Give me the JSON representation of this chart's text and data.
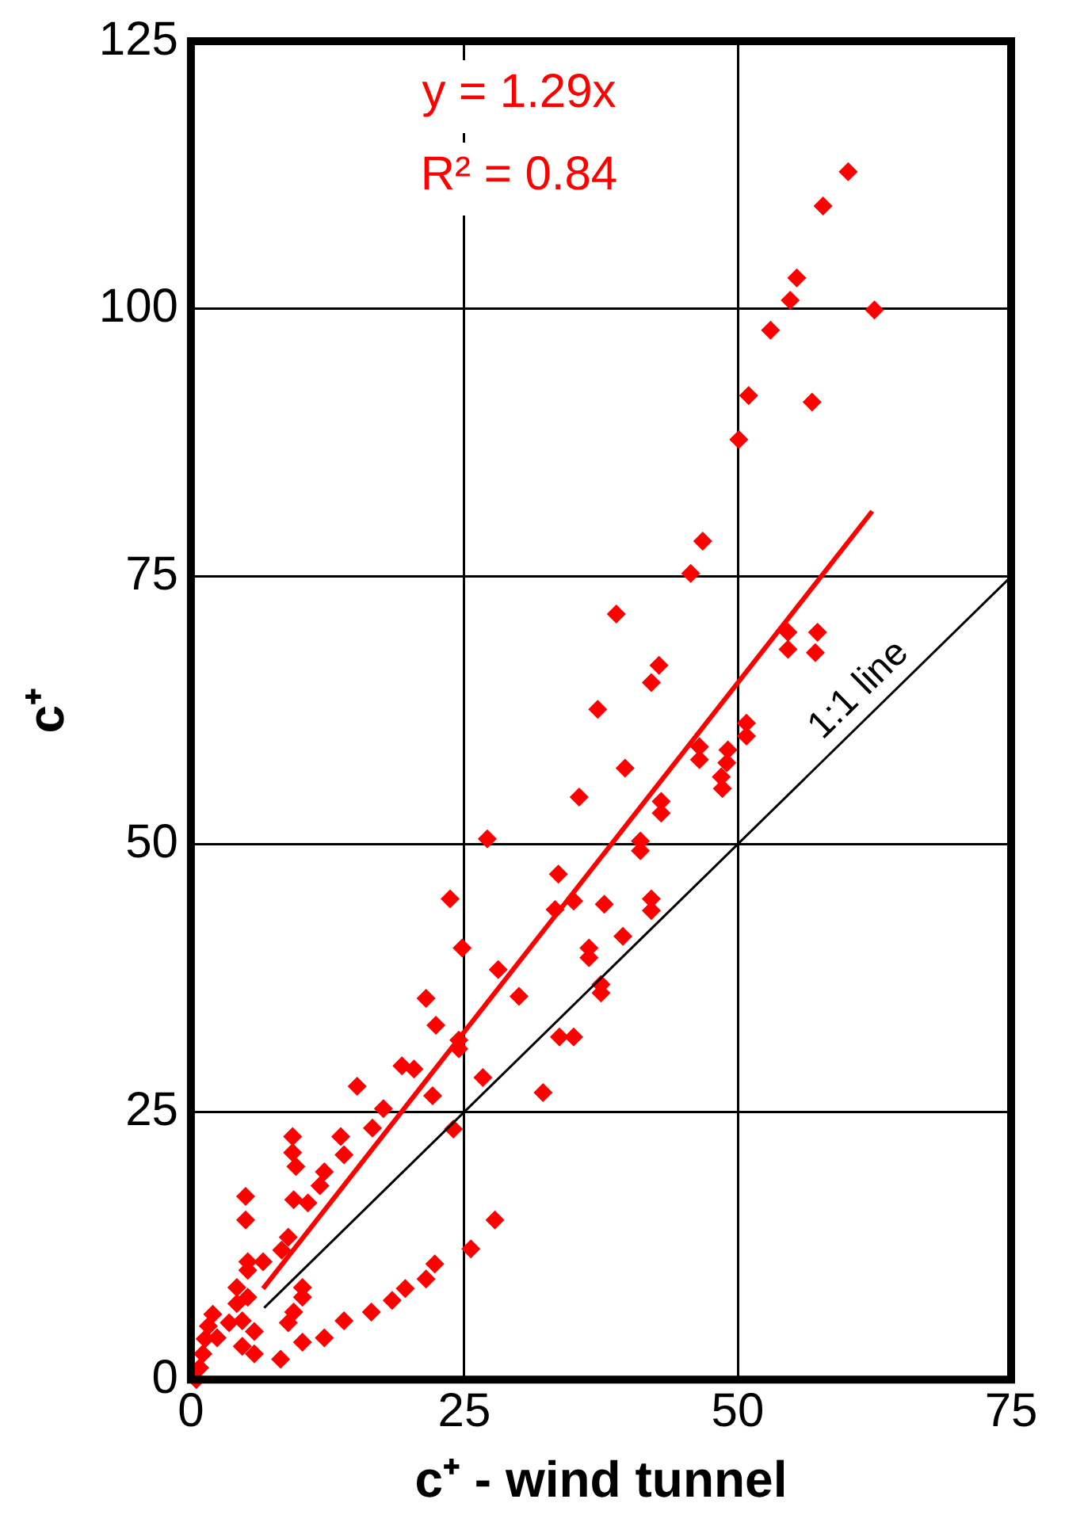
{
  "chart_data": {
    "type": "scatter",
    "xlabel": "c⁺ - wind tunnel",
    "ylabel": "c⁺",
    "xlim": [
      0,
      75
    ],
    "xticks": [
      0,
      25,
      50,
      75
    ],
    "ylim": [
      0,
      125
    ],
    "yticks": [
      0,
      25,
      50,
      75,
      100,
      125
    ],
    "grid": true,
    "legend": false,
    "annotations": [
      "y = 1.29x",
      "R² = 0.84"
    ],
    "series": [
      {
        "type": "scatter",
        "color": "#ff0000",
        "marker": "diamond",
        "x": [
          60.1,
          57.8,
          55.4,
          54.8,
          62.5,
          53.0,
          51.0,
          56.8,
          50.1,
          46.8,
          45.7,
          54.6,
          57.3,
          38.9,
          54.6,
          57.1,
          42.8,
          42.1,
          37.2,
          50.8,
          50.8,
          46.5,
          46.5,
          49.1,
          49.0,
          48.5,
          48.6,
          39.7,
          35.5,
          43.0,
          43.0,
          41.1,
          41.1,
          27.1,
          33.6,
          33.3,
          35.0,
          37.8,
          42.1,
          42.1,
          39.5,
          36.4,
          36.4,
          28.1,
          30.0,
          37.5,
          37.5,
          33.7,
          35.0,
          32.2,
          26.7,
          23.7,
          24.8,
          21.5,
          22.4,
          24.5,
          24.5,
          19.3,
          20.4,
          15.2,
          22.1,
          17.6,
          16.6,
          24.0,
          9.3,
          9.3,
          9.6,
          13.7,
          14.0,
          12.2,
          11.8,
          5.0,
          5.0,
          9.4,
          10.7,
          8.9,
          8.3,
          27.8,
          25.6,
          22.3,
          21.5,
          19.6,
          18.4,
          16.5,
          14.0,
          12.2,
          10.2,
          8.2,
          10.2,
          10.2,
          9.4,
          8.9,
          5.2,
          5.2,
          6.6,
          4.2,
          4.2,
          5.2,
          4.7,
          5.8,
          4.7,
          5.8,
          2.0,
          1.6,
          1.3,
          1.1,
          0.8,
          0.5,
          2.4,
          3.5
        ],
        "values": [
          112.8,
          109.6,
          102.9,
          100.8,
          99.9,
          98.0,
          91.9,
          91.3,
          87.8,
          78.3,
          75.3,
          69.8,
          69.8,
          71.5,
          68.2,
          67.9,
          66.7,
          65.1,
          62.6,
          61.3,
          60.1,
          59.1,
          57.9,
          58.8,
          57.6,
          56.3,
          55.2,
          57.1,
          54.4,
          54.0,
          52.9,
          50.3,
          49.4,
          50.5,
          47.2,
          43.9,
          44.7,
          44.4,
          44.9,
          43.8,
          41.4,
          40.3,
          39.4,
          38.3,
          35.8,
          36.9,
          36.1,
          32.0,
          32.0,
          26.8,
          28.2,
          44.9,
          40.3,
          35.6,
          33.1,
          31.7,
          30.9,
          29.3,
          29.0,
          27.4,
          26.5,
          25.3,
          23.5,
          23.4,
          22.7,
          21.2,
          19.9,
          22.7,
          21.0,
          19.4,
          18.1,
          17.1,
          14.9,
          16.8,
          16.5,
          13.3,
          12.1,
          14.9,
          12.2,
          10.8,
          9.4,
          8.5,
          7.4,
          6.3,
          5.5,
          3.9,
          3.5,
          1.9,
          8.6,
          7.7,
          6.3,
          5.3,
          11.0,
          10.2,
          11.0,
          8.6,
          7.1,
          7.7,
          5.5,
          4.5,
          3.1,
          2.4,
          6.1,
          5.0,
          3.8,
          2.4,
          1.1,
          0.0,
          3.9,
          5.3
        ]
      },
      {
        "type": "line",
        "color": "#ff0000",
        "x": [
          6.6,
          62.3
        ],
        "values": [
          8.5,
          81.1
        ]
      },
      {
        "type": "line",
        "name": "1:1 line",
        "color": "#000000",
        "x": [
          6.7,
          75
        ],
        "values": [
          6.7,
          75
        ]
      }
    ]
  }
}
